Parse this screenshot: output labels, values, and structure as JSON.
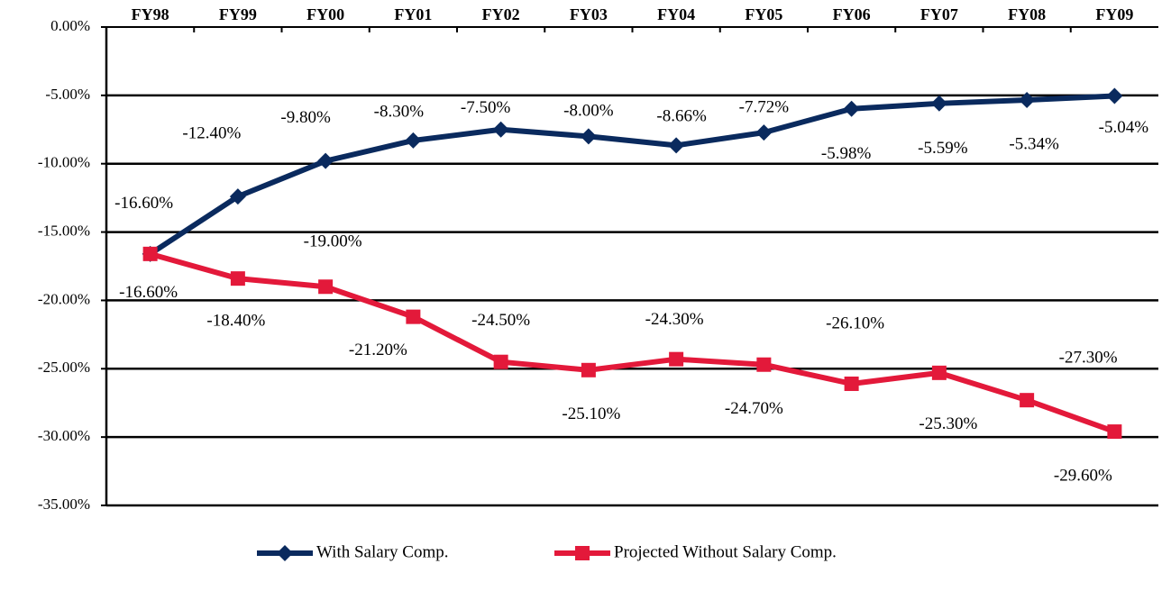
{
  "chart_data": {
    "type": "line",
    "categories": [
      "FY98",
      "FY99",
      "FY00",
      "FY01",
      "FY02",
      "FY03",
      "FY04",
      "FY05",
      "FY06",
      "FY07",
      "FY08",
      "FY09"
    ],
    "series": [
      {
        "name": "With Salary Comp.",
        "color": "#0a2a5e",
        "marker": "diamond",
        "values": [
          -16.6,
          -12.4,
          -9.8,
          -8.3,
          -7.5,
          -8.0,
          -8.66,
          -7.72,
          -5.98,
          -5.59,
          -5.34,
          -5.04
        ],
        "value_labels": [
          "-16.60%",
          "-12.40%",
          "-9.80%",
          "-8.30%",
          "-7.50%",
          "-8.00%",
          "-8.66%",
          "-7.72%",
          "-5.98%",
          "-5.59%",
          "-5.34%",
          "-5.04%"
        ]
      },
      {
        "name": "Projected Without Salary Comp.",
        "color": "#e3193a",
        "marker": "square",
        "values": [
          -16.6,
          -18.4,
          -19.0,
          -21.2,
          -24.5,
          -25.1,
          -24.3,
          -24.7,
          -26.1,
          -25.3,
          -27.3,
          -29.6
        ],
        "value_labels": [
          "-16.60%",
          "-18.40%",
          "-19.00%",
          "-21.20%",
          "-24.50%",
          "-25.10%",
          "-24.30%",
          "-24.70%",
          "-26.10%",
          "-25.30%",
          "-27.30%",
          "-29.60%"
        ]
      }
    ],
    "ylim": [
      -35,
      0
    ],
    "yticks": [
      {
        "value": 0,
        "label": "0.00%"
      },
      {
        "value": -5,
        "label": "-5.00%"
      },
      {
        "value": -10,
        "label": "-10.00%"
      },
      {
        "value": -15,
        "label": "-15.00%"
      },
      {
        "value": -20,
        "label": "-20.00%"
      },
      {
        "value": -25,
        "label": "-25.00%"
      },
      {
        "value": -30,
        "label": "-30.00%"
      },
      {
        "value": -35,
        "label": "-35.00%"
      }
    ],
    "grid": true,
    "legend": "bottom"
  }
}
